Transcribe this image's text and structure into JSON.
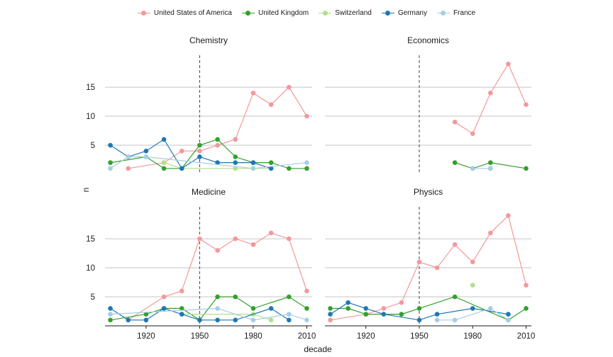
{
  "chart_data": {
    "type": "line",
    "xlabel": "decade",
    "ylabel": "n",
    "x_ticks": [
      1920,
      1950,
      1980,
      2010
    ],
    "y_ticks": [
      5,
      10,
      15
    ],
    "xlim": [
      1897,
      2013
    ],
    "ylim": [
      0,
      20.5
    ],
    "reference_line_x": 1950,
    "legend_position": "top",
    "grid": "horizontal major lines only",
    "countries": [
      {
        "name": "United States of America",
        "color": "#f4989a"
      },
      {
        "name": "United Kingdom",
        "color": "#33a02c"
      },
      {
        "name": "Switzerland",
        "color": "#b2df8a"
      },
      {
        "name": "Germany",
        "color": "#1f78b4"
      },
      {
        "name": "France",
        "color": "#a6cee3"
      }
    ],
    "panels": [
      {
        "title": "Chemistry",
        "series": [
          {
            "name": "United States of America",
            "x": [
              1910,
              1930,
              1940,
              1950,
              1960,
              1970,
              1980,
              1990,
              2000,
              2010
            ],
            "y": [
              1,
              2,
              4,
              4,
              5,
              6,
              14,
              12,
              15,
              10
            ]
          },
          {
            "name": "United Kingdom",
            "x": [
              1900,
              1920,
              1930,
              1940,
              1950,
              1960,
              1970,
              1980,
              1990,
              2000,
              2010
            ],
            "y": [
              2,
              3,
              1,
              1,
              5,
              6,
              3,
              2,
              2,
              1,
              1
            ]
          },
          {
            "name": "Switzerland",
            "x": [
              1930,
              1940,
              1970,
              1980,
              1990
            ],
            "y": [
              2,
              1,
              1,
              1,
              1
            ]
          },
          {
            "name": "Germany",
            "x": [
              1900,
              1910,
              1920,
              1930,
              1940,
              1950,
              1960,
              1970,
              1980,
              1990
            ],
            "y": [
              5,
              3,
              4,
              6,
              1,
              3,
              2,
              2,
              2,
              1
            ]
          },
          {
            "name": "France",
            "x": [
              1900,
              1910,
              1920,
              1980,
              2010
            ],
            "y": [
              1,
              3,
              3,
              1,
              2
            ]
          }
        ]
      },
      {
        "title": "Economics",
        "series": [
          {
            "name": "United States of America",
            "x": [
              1970,
              1980,
              1990,
              2000,
              2010
            ],
            "y": [
              9,
              7,
              14,
              19,
              12
            ]
          },
          {
            "name": "United Kingdom",
            "x": [
              1970,
              1980,
              1990,
              2010
            ],
            "y": [
              2,
              1,
              2,
              1
            ]
          },
          {
            "name": "Switzerland",
            "x": [],
            "y": []
          },
          {
            "name": "Germany",
            "x": [
              1990
            ],
            "y": [
              1
            ]
          },
          {
            "name": "France",
            "x": [
              1980,
              1990
            ],
            "y": [
              1,
              1
            ]
          }
        ]
      },
      {
        "title": "Medicine",
        "series": [
          {
            "name": "United States of America",
            "x": [
              1910,
              1930,
              1940,
              1950,
              1960,
              1970,
              1980,
              1990,
              2000,
              2010
            ],
            "y": [
              1,
              5,
              6,
              15,
              13,
              15,
              14,
              16,
              15,
              6
            ]
          },
          {
            "name": "United Kingdom",
            "x": [
              1900,
              1920,
              1930,
              1940,
              1950,
              1960,
              1970,
              1980,
              2000,
              2010
            ],
            "y": [
              1,
              2,
              3,
              3,
              1,
              5,
              5,
              3,
              5,
              3
            ]
          },
          {
            "name": "Switzerland",
            "x": [
              1940,
              1980,
              1990
            ],
            "y": [
              2,
              2,
              1
            ]
          },
          {
            "name": "Germany",
            "x": [
              1900,
              1910,
              1920,
              1930,
              1940,
              1950,
              1960,
              1970,
              1990,
              2000
            ],
            "y": [
              3,
              1,
              1,
              3,
              2,
              1,
              1,
              1,
              3,
              1
            ]
          },
          {
            "name": "France",
            "x": [
              1900,
              1960,
              1980,
              2000,
              2010
            ],
            "y": [
              2,
              3,
              1,
              2,
              1
            ]
          }
        ]
      },
      {
        "title": "Physics",
        "series": [
          {
            "name": "United States of America",
            "x": [
              1900,
              1920,
              1930,
              1940,
              1950,
              1960,
              1970,
              1980,
              1990,
              2000,
              2010
            ],
            "y": [
              1,
              2,
              3,
              4,
              11,
              10,
              14,
              11,
              16,
              19,
              7
            ]
          },
          {
            "name": "United Kingdom",
            "x": [
              1900,
              1910,
              1920,
              1940,
              1950,
              1970,
              2000,
              2010
            ],
            "y": [
              3,
              3,
              2,
              2,
              3,
              5,
              1,
              3
            ]
          },
          {
            "name": "Switzerland",
            "x": [
              1980
            ],
            "y": [
              7
            ]
          },
          {
            "name": "Germany",
            "x": [
              1900,
              1910,
              1920,
              1930,
              1950,
              1960,
              1980,
              2000
            ],
            "y": [
              2,
              4,
              3,
              2,
              1,
              2,
              3,
              2
            ]
          },
          {
            "name": "France",
            "x": [
              1960,
              1970,
              1990,
              2000
            ],
            "y": [
              1,
              1,
              3,
              1
            ]
          }
        ]
      }
    ]
  }
}
